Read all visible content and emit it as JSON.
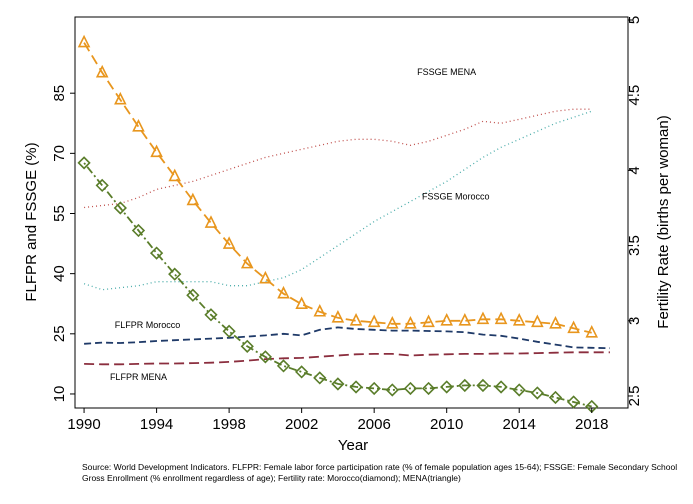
{
  "chart_data": {
    "type": "line",
    "xlabel": "Year",
    "ylabel_left": "FLFPR and FSSGE (%)",
    "ylabel_right": "Fertility Rate (births per woman)",
    "xlim": [
      1989.5,
      2020
    ],
    "ylim_left": [
      6.5,
      104
    ],
    "ylim_right": [
      2.42,
      5.02
    ],
    "x_ticks": [
      1990,
      1994,
      1998,
      2002,
      2006,
      2010,
      2014,
      2018
    ],
    "y_ticks_left": [
      10,
      25,
      40,
      55,
      70,
      85
    ],
    "y_ticks_right": [
      2.5,
      3,
      3.5,
      4,
      4.5,
      5
    ],
    "y_tick_labels_right": [
      "2.5",
      "3",
      "3.5",
      "4",
      "4.5",
      "5"
    ],
    "grid": false,
    "series": [
      {
        "name": "FSSGE MENA",
        "axis": "left",
        "style": "dotted",
        "color": "#c0504d",
        "x": [
          1990,
          1991,
          1992,
          1993,
          1994,
          1995,
          1996,
          1997,
          1998,
          1999,
          2000,
          2001,
          2002,
          2003,
          2004,
          2005,
          2006,
          2007,
          2008,
          2009,
          2010,
          2011,
          2012,
          2013,
          2014,
          2015,
          2016,
          2017,
          2018
        ],
        "values": [
          56.5,
          57,
          57.5,
          59,
          61,
          62,
          63,
          64.5,
          66,
          67.5,
          69,
          70,
          71,
          72,
          73,
          73.5,
          73.5,
          73,
          72,
          73,
          74.5,
          76,
          78,
          77.5,
          78.5,
          79.5,
          80.5,
          81,
          81
        ]
      },
      {
        "name": "FSSGE Morocco",
        "axis": "left",
        "style": "dotted",
        "color": "#4aacaa",
        "x": [
          1990,
          1991,
          1992,
          1993,
          1994,
          1995,
          1996,
          1997,
          1998,
          1999,
          2000,
          2001,
          2002,
          2003,
          2004,
          2005,
          2006,
          2007,
          2008,
          2009,
          2010,
          2011,
          2012,
          2013,
          2014,
          2015,
          2016,
          2017,
          2018
        ],
        "values": [
          37.5,
          36,
          36.5,
          37,
          38,
          38,
          38,
          38,
          37,
          37,
          38,
          39,
          41,
          44,
          47,
          50,
          53,
          55.5,
          58,
          60.5,
          63,
          66,
          69,
          71.5,
          73.5,
          75.5,
          77.5,
          79,
          80.5
        ]
      },
      {
        "name": "FLFPR Morocco",
        "axis": "left",
        "style": "dashed",
        "color": "#1f3a68",
        "x": [
          1990,
          1991,
          1992,
          1993,
          1994,
          1995,
          1996,
          1997,
          1998,
          1999,
          2000,
          2001,
          2002,
          2003,
          2004,
          2005,
          2006,
          2007,
          2008,
          2009,
          2010,
          2011,
          2012,
          2013,
          2014,
          2015,
          2016,
          2017,
          2018,
          2019
        ],
        "values": [
          22.5,
          22.8,
          22.7,
          22.9,
          23.2,
          23.4,
          23.6,
          23.8,
          24,
          24.3,
          24.6,
          25,
          24.6,
          26,
          26.6,
          26.2,
          26,
          25.8,
          25.8,
          25.7,
          25.6,
          25.4,
          24.8,
          24.5,
          23.8,
          23,
          22.3,
          21.6,
          21.5,
          21.4
        ]
      },
      {
        "name": "FLFPR MENA",
        "axis": "left",
        "style": "longdash",
        "color": "#8b2e3e",
        "x": [
          1990,
          1991,
          1992,
          1993,
          1994,
          1995,
          1996,
          1997,
          1998,
          1999,
          2000,
          2001,
          2002,
          2003,
          2004,
          2005,
          2006,
          2007,
          2008,
          2009,
          2010,
          2011,
          2012,
          2013,
          2014,
          2015,
          2016,
          2017,
          2018,
          2019
        ],
        "values": [
          17.5,
          17.4,
          17.4,
          17.5,
          17.6,
          17.6,
          17.7,
          17.8,
          18,
          18.3,
          18.7,
          18.9,
          19,
          19.3,
          19.6,
          19.9,
          20,
          20,
          19.6,
          19.8,
          19.9,
          20,
          20,
          20.1,
          20.1,
          20.2,
          20.3,
          20.4,
          20.4,
          20.4
        ]
      },
      {
        "name": "Fertility rate Morocco",
        "axis": "right",
        "marker": "diamond",
        "style": "dashdot",
        "color": "#5a7d2a",
        "x": [
          1990,
          1991,
          1992,
          1993,
          1994,
          1995,
          1996,
          1997,
          1998,
          1999,
          2000,
          2001,
          2002,
          2003,
          2004,
          2005,
          2006,
          2007,
          2008,
          2009,
          2010,
          2011,
          2012,
          2013,
          2014,
          2015,
          2016,
          2017,
          2018
        ],
        "values": [
          4.05,
          3.9,
          3.75,
          3.6,
          3.45,
          3.31,
          3.17,
          3.04,
          2.93,
          2.83,
          2.76,
          2.7,
          2.66,
          2.62,
          2.58,
          2.56,
          2.55,
          2.54,
          2.55,
          2.55,
          2.56,
          2.57,
          2.57,
          2.56,
          2.54,
          2.52,
          2.49,
          2.46,
          2.43
        ]
      },
      {
        "name": "Fertility rate MENA",
        "axis": "right",
        "marker": "triangle",
        "style": "longdash",
        "color": "#e8961e",
        "x": [
          1990,
          1991,
          1992,
          1993,
          1994,
          1995,
          1996,
          1997,
          1998,
          1999,
          2000,
          2001,
          2002,
          2003,
          2004,
          2005,
          2006,
          2007,
          2008,
          2009,
          2010,
          2011,
          2012,
          2013,
          2014,
          2015,
          2016,
          2017,
          2018
        ],
        "values": [
          4.85,
          4.65,
          4.47,
          4.29,
          4.12,
          3.96,
          3.8,
          3.65,
          3.51,
          3.38,
          3.28,
          3.18,
          3.11,
          3.06,
          3.02,
          3,
          2.99,
          2.98,
          2.98,
          2.99,
          3,
          3,
          3.01,
          3.01,
          3,
          2.99,
          2.98,
          2.95,
          2.92
        ]
      }
    ],
    "annotations": [
      {
        "text": "FSSGE MENA",
        "x": 2010,
        "y": 89.5
      },
      {
        "text": "FSSGE Morocco",
        "x": 2010.5,
        "y": 58.5
      },
      {
        "text": "FLFPR Morocco",
        "x": 1993.5,
        "y": 26.5
      },
      {
        "text": "FLFPR MENA",
        "x": 1993,
        "y": 13.5
      }
    ],
    "source": "Source: World Development Indicators. FLFPR: Female labor force participation rate (% of female population ages 15-64); FSSGE: Female Secondary School Gross Enrollment (% enrollment regardless of age); Fertility rate: Morocco(diamond); MENA(triangle)"
  }
}
